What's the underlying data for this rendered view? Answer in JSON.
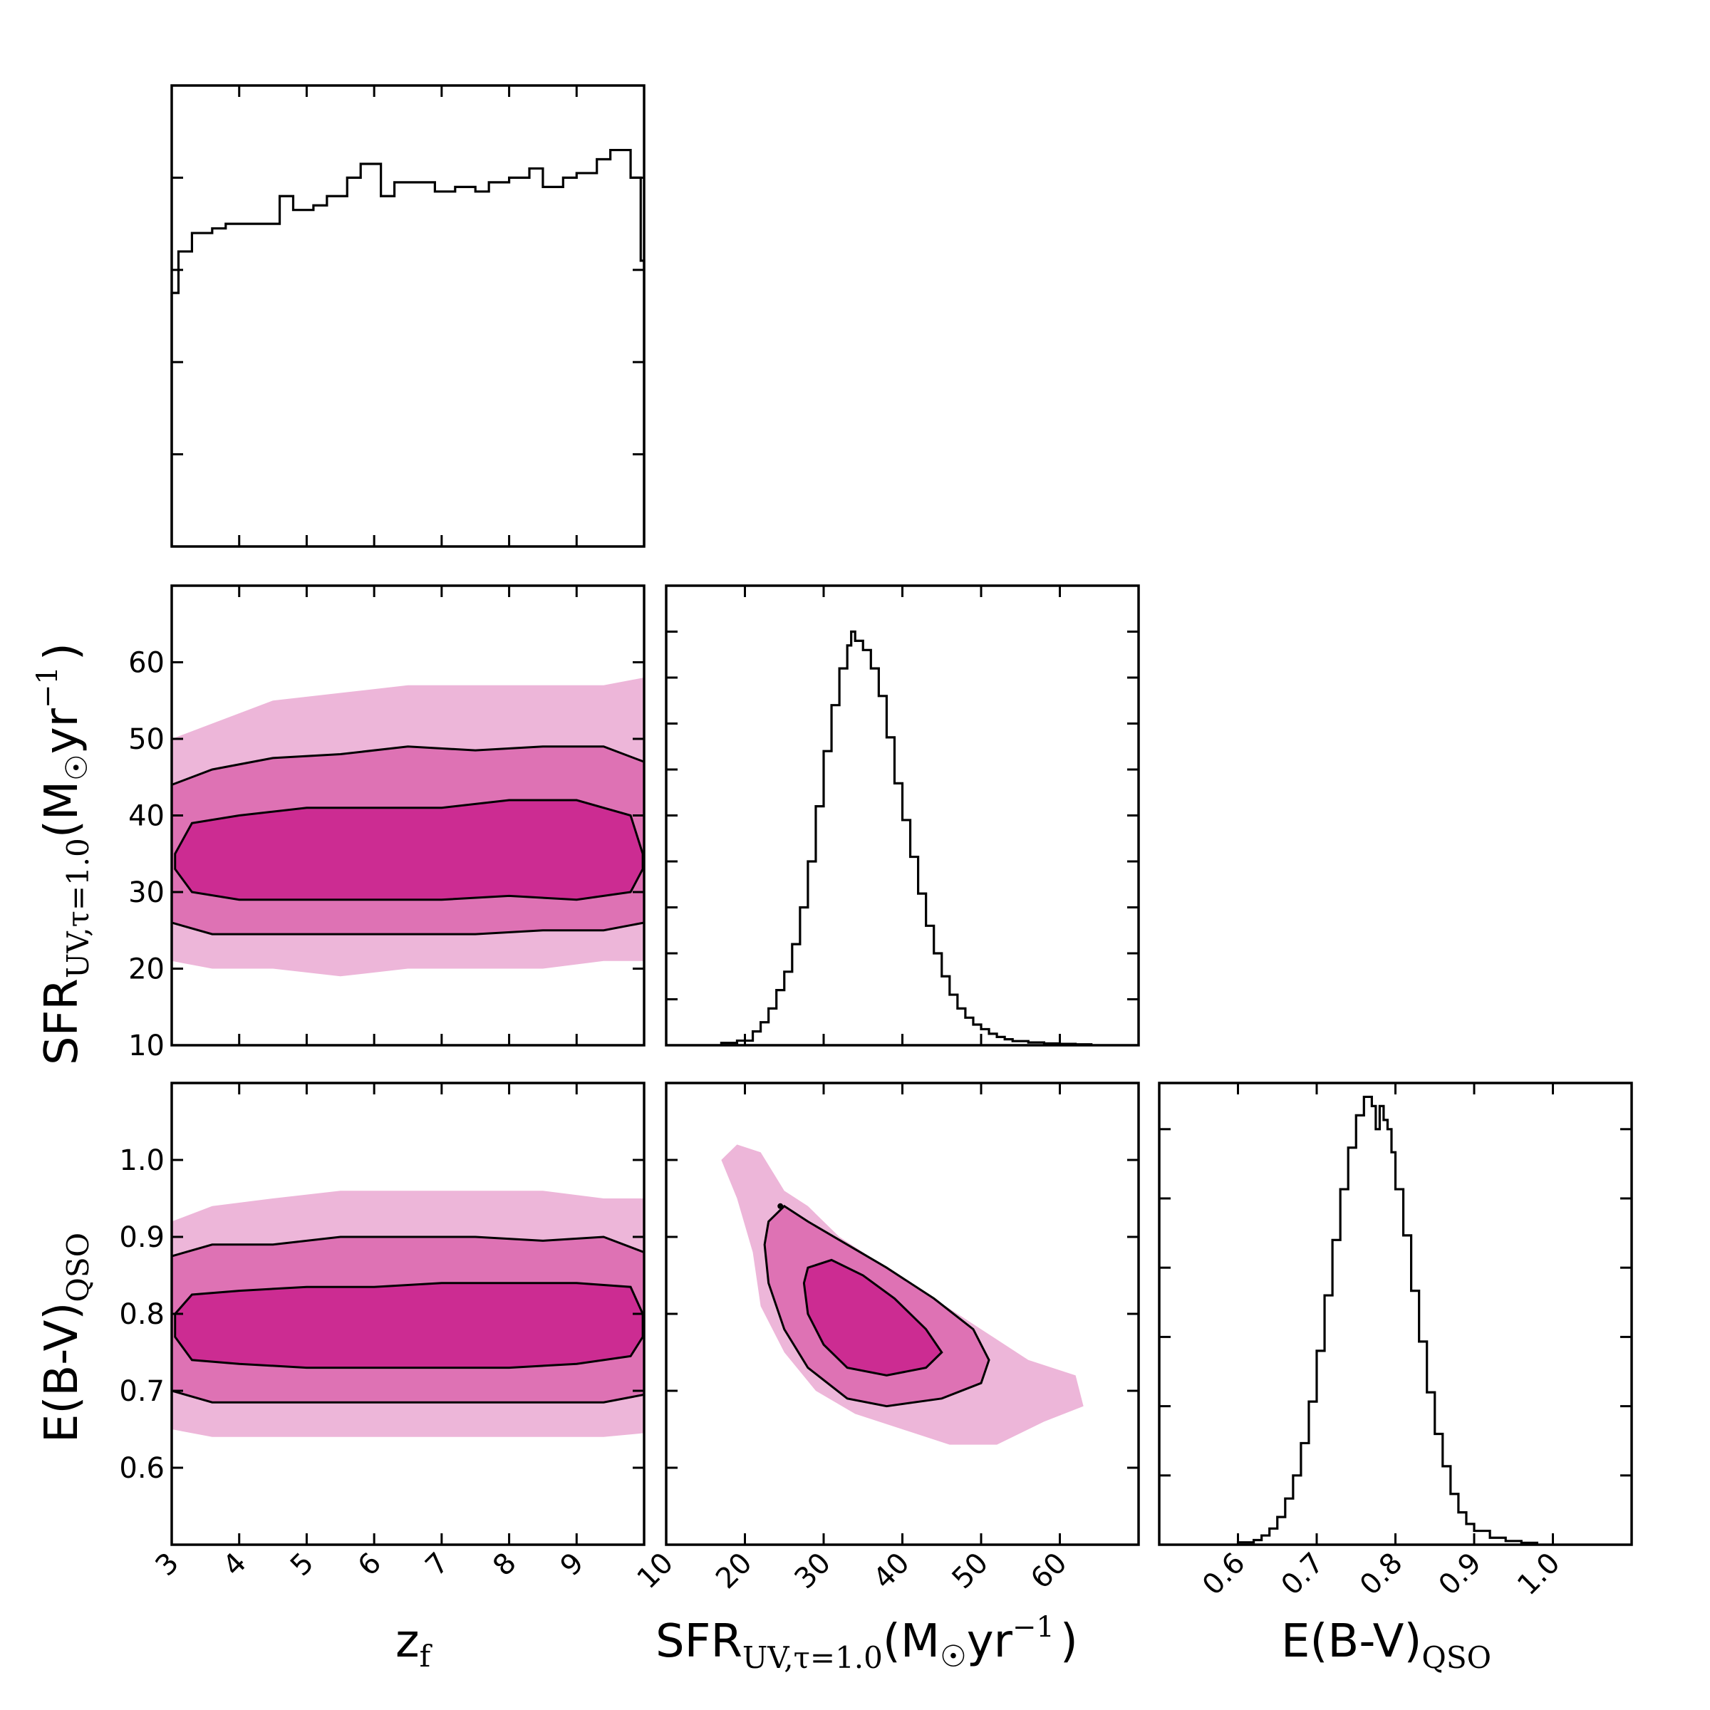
{
  "chart_data": [
    {
      "id": "hist-zf",
      "type": "histogram",
      "parameter": "z_f",
      "xlim": [
        3,
        10
      ],
      "ylim": [
        0,
        1.0
      ],
      "bin_edges": [
        3.0,
        3.1,
        3.3,
        3.6,
        3.8,
        4.0,
        4.3,
        4.6,
        4.8,
        5.1,
        5.3,
        5.6,
        5.8,
        6.1,
        6.3,
        6.6,
        6.9,
        7.2,
        7.5,
        7.7,
        8.0,
        8.3,
        8.5,
        8.8,
        9.0,
        9.3,
        9.5,
        9.8,
        9.95,
        10.0
      ],
      "counts": [
        0.55,
        0.64,
        0.68,
        0.69,
        0.7,
        0.7,
        0.7,
        0.76,
        0.73,
        0.74,
        0.76,
        0.8,
        0.83,
        0.76,
        0.79,
        0.79,
        0.77,
        0.78,
        0.77,
        0.79,
        0.8,
        0.82,
        0.78,
        0.8,
        0.81,
        0.84,
        0.86,
        0.8,
        0.62,
        0.0
      ],
      "ytick_positions": [
        0.2,
        0.4,
        0.6,
        0.8
      ]
    },
    {
      "id": "hist-sfr",
      "type": "histogram",
      "parameter": "SFR",
      "xlim": [
        10,
        70
      ],
      "ylim": [
        0,
        1.0
      ],
      "bin_edges": [
        17,
        19,
        21,
        22,
        23,
        24,
        25,
        26,
        27,
        28,
        29,
        30,
        31,
        32,
        33,
        33.5,
        34,
        35,
        36,
        37,
        38,
        39,
        40,
        41,
        42,
        43,
        44,
        45,
        46,
        47,
        48,
        49,
        50,
        51,
        52,
        53,
        54,
        56,
        58,
        60,
        62,
        64
      ],
      "counts": [
        0.005,
        0.01,
        0.03,
        0.05,
        0.08,
        0.12,
        0.16,
        0.22,
        0.3,
        0.4,
        0.52,
        0.64,
        0.74,
        0.82,
        0.87,
        0.9,
        0.88,
        0.86,
        0.82,
        0.76,
        0.67,
        0.57,
        0.49,
        0.41,
        0.33,
        0.26,
        0.2,
        0.15,
        0.11,
        0.08,
        0.06,
        0.045,
        0.035,
        0.025,
        0.018,
        0.013,
        0.009,
        0.006,
        0.004,
        0.003,
        0.002
      ],
      "ytick_positions": [
        0.1,
        0.2,
        0.3,
        0.4,
        0.5,
        0.6,
        0.7,
        0.8,
        0.9
      ]
    },
    {
      "id": "hist-ebv",
      "type": "histogram",
      "parameter": "E(B-V)_QSO",
      "xlim": [
        0.5,
        1.1
      ],
      "ylim": [
        0,
        1.0
      ],
      "bin_edges": [
        0.6,
        0.62,
        0.63,
        0.64,
        0.65,
        0.66,
        0.67,
        0.68,
        0.69,
        0.7,
        0.71,
        0.72,
        0.73,
        0.74,
        0.75,
        0.76,
        0.77,
        0.775,
        0.78,
        0.785,
        0.79,
        0.795,
        0.8,
        0.81,
        0.82,
        0.83,
        0.84,
        0.85,
        0.86,
        0.87,
        0.88,
        0.89,
        0.9,
        0.92,
        0.94,
        0.96,
        0.98
      ],
      "counts": [
        0.005,
        0.01,
        0.02,
        0.035,
        0.06,
        0.1,
        0.15,
        0.22,
        0.31,
        0.42,
        0.54,
        0.66,
        0.77,
        0.86,
        0.93,
        0.97,
        0.95,
        0.9,
        0.95,
        0.92,
        0.9,
        0.85,
        0.77,
        0.67,
        0.55,
        0.44,
        0.33,
        0.24,
        0.17,
        0.11,
        0.07,
        0.045,
        0.03,
        0.015,
        0.008,
        0.004
      ],
      "ytick_positions": [
        0.15,
        0.3,
        0.45,
        0.6,
        0.75,
        0.9
      ]
    },
    {
      "id": "contour-zf-sfr",
      "type": "contour",
      "x": "z_f",
      "y": "SFR",
      "xlim": [
        3,
        10
      ],
      "ylim": [
        10,
        70
      ],
      "yticks": [
        10,
        20,
        30,
        40,
        50,
        60
      ],
      "ytick_labels": [
        "10",
        "20",
        "30",
        "40",
        "50",
        "60"
      ],
      "fill_colors": [
        "#edb6d9",
        "#de72b4",
        "#cc2c92"
      ],
      "levels": [
        {
          "name": "outer",
          "upper": [
            [
              3,
              50
            ],
            [
              3.6,
              52
            ],
            [
              4.5,
              55
            ],
            [
              5.5,
              56
            ],
            [
              6.5,
              57
            ],
            [
              7.5,
              57
            ],
            [
              8.5,
              57
            ],
            [
              9.4,
              57
            ],
            [
              10,
              58
            ]
          ],
          "lower": [
            [
              3,
              21
            ],
            [
              3.6,
              20
            ],
            [
              4.5,
              20
            ],
            [
              5.5,
              19
            ],
            [
              6.5,
              20
            ],
            [
              7.5,
              20
            ],
            [
              8.5,
              20
            ],
            [
              9.4,
              21
            ],
            [
              10,
              21
            ]
          ]
        },
        {
          "name": "2sigma",
          "upper": [
            [
              3,
              44
            ],
            [
              3.6,
              46
            ],
            [
              4.5,
              47.5
            ],
            [
              5.5,
              48
            ],
            [
              6.5,
              49
            ],
            [
              7.5,
              48.5
            ],
            [
              8.5,
              49
            ],
            [
              9.4,
              49
            ],
            [
              10,
              47
            ]
          ],
          "lower": [
            [
              3,
              26
            ],
            [
              3.6,
              24.5
            ],
            [
              4.5,
              24.5
            ],
            [
              5.5,
              24.5
            ],
            [
              6.5,
              24.5
            ],
            [
              7.5,
              24.5
            ],
            [
              8.5,
              25
            ],
            [
              9.4,
              25
            ],
            [
              10,
              26
            ]
          ]
        },
        {
          "name": "1sigma",
          "upper": [
            [
              3.05,
              35
            ],
            [
              3.3,
              39
            ],
            [
              4,
              40
            ],
            [
              5,
              41
            ],
            [
              6,
              41
            ],
            [
              7,
              41
            ],
            [
              8,
              42
            ],
            [
              9,
              42
            ],
            [
              9.8,
              40
            ],
            [
              9.98,
              35
            ]
          ],
          "lower": [
            [
              3.05,
              33
            ],
            [
              3.3,
              30
            ],
            [
              4,
              29
            ],
            [
              5,
              29
            ],
            [
              6,
              29
            ],
            [
              7,
              29
            ],
            [
              8,
              29.5
            ],
            [
              9,
              29
            ],
            [
              9.8,
              30
            ],
            [
              9.98,
              33
            ]
          ]
        }
      ]
    },
    {
      "id": "contour-zf-ebv",
      "type": "contour",
      "x": "z_f",
      "y": "E(B-V)_QSO",
      "xlim": [
        3,
        10
      ],
      "ylim": [
        0.5,
        1.1
      ],
      "yticks": [
        0.6,
        0.7,
        0.8,
        0.9,
        1.0
      ],
      "ytick_labels": [
        "0.6",
        "0.7",
        "0.8",
        "0.9",
        "1.0"
      ],
      "fill_colors": [
        "#edb6d9",
        "#de72b4",
        "#cc2c92"
      ],
      "levels": [
        {
          "name": "outer",
          "upper": [
            [
              3,
              0.92
            ],
            [
              3.6,
              0.94
            ],
            [
              4.5,
              0.95
            ],
            [
              5.5,
              0.96
            ],
            [
              6.5,
              0.96
            ],
            [
              7.5,
              0.96
            ],
            [
              8.5,
              0.96
            ],
            [
              9.4,
              0.95
            ],
            [
              10,
              0.95
            ]
          ],
          "lower": [
            [
              3,
              0.65
            ],
            [
              3.6,
              0.64
            ],
            [
              4.5,
              0.64
            ],
            [
              5.5,
              0.64
            ],
            [
              6.5,
              0.64
            ],
            [
              7.5,
              0.64
            ],
            [
              8.5,
              0.64
            ],
            [
              9.4,
              0.64
            ],
            [
              10,
              0.645
            ]
          ]
        },
        {
          "name": "2sigma",
          "upper": [
            [
              3,
              0.875
            ],
            [
              3.6,
              0.89
            ],
            [
              4.5,
              0.89
            ],
            [
              5.5,
              0.9
            ],
            [
              6.5,
              0.9
            ],
            [
              7.5,
              0.9
            ],
            [
              8.5,
              0.895
            ],
            [
              9.4,
              0.9
            ],
            [
              10,
              0.88
            ]
          ],
          "lower": [
            [
              3,
              0.7
            ],
            [
              3.6,
              0.685
            ],
            [
              4.5,
              0.685
            ],
            [
              5.5,
              0.685
            ],
            [
              6.5,
              0.685
            ],
            [
              7.5,
              0.685
            ],
            [
              8.5,
              0.685
            ],
            [
              9.4,
              0.685
            ],
            [
              10,
              0.695
            ]
          ]
        },
        {
          "name": "1sigma",
          "upper": [
            [
              3.05,
              0.8
            ],
            [
              3.3,
              0.825
            ],
            [
              4,
              0.83
            ],
            [
              5,
              0.835
            ],
            [
              6,
              0.835
            ],
            [
              7,
              0.84
            ],
            [
              8,
              0.84
            ],
            [
              9,
              0.84
            ],
            [
              9.8,
              0.835
            ],
            [
              9.98,
              0.8
            ]
          ],
          "lower": [
            [
              3.05,
              0.77
            ],
            [
              3.3,
              0.74
            ],
            [
              4,
              0.735
            ],
            [
              5,
              0.73
            ],
            [
              6,
              0.73
            ],
            [
              7,
              0.73
            ],
            [
              8,
              0.73
            ],
            [
              9,
              0.735
            ],
            [
              9.8,
              0.745
            ],
            [
              9.98,
              0.77
            ]
          ]
        }
      ]
    },
    {
      "id": "contour-sfr-ebv",
      "type": "contour",
      "x": "SFR",
      "y": "E(B-V)_QSO",
      "xlim": [
        10,
        70
      ],
      "ylim": [
        0.5,
        1.1
      ],
      "fill_colors": [
        "#edb6d9",
        "#de72b4",
        "#cc2c92"
      ],
      "levels": [
        {
          "name": "outer",
          "polygon": [
            [
              17,
              1.0
            ],
            [
              19,
              1.02
            ],
            [
              22,
              1.01
            ],
            [
              25,
              0.96
            ],
            [
              28,
              0.94
            ],
            [
              32,
              0.9
            ],
            [
              38,
              0.86
            ],
            [
              44,
              0.82
            ],
            [
              50,
              0.78
            ],
            [
              56,
              0.74
            ],
            [
              62,
              0.72
            ],
            [
              63,
              0.68
            ],
            [
              58,
              0.66
            ],
            [
              52,
              0.63
            ],
            [
              46,
              0.63
            ],
            [
              40,
              0.65
            ],
            [
              34,
              0.67
            ],
            [
              29,
              0.7
            ],
            [
              25,
              0.75
            ],
            [
              22,
              0.81
            ],
            [
              21,
              0.88
            ],
            [
              19,
              0.95
            ]
          ]
        },
        {
          "name": "2sigma",
          "polygon": [
            [
              23,
              0.92
            ],
            [
              25,
              0.94
            ],
            [
              28,
              0.92
            ],
            [
              33,
              0.89
            ],
            [
              38,
              0.86
            ],
            [
              44,
              0.82
            ],
            [
              49,
              0.78
            ],
            [
              51,
              0.74
            ],
            [
              50,
              0.71
            ],
            [
              45,
              0.69
            ],
            [
              38,
              0.68
            ],
            [
              33,
              0.69
            ],
            [
              28,
              0.73
            ],
            [
              25,
              0.78
            ],
            [
              23,
              0.84
            ],
            [
              22.5,
              0.89
            ]
          ]
        },
        {
          "name": "1sigma",
          "polygon": [
            [
              28,
              0.86
            ],
            [
              31,
              0.87
            ],
            [
              35,
              0.85
            ],
            [
              39,
              0.82
            ],
            [
              43,
              0.78
            ],
            [
              45,
              0.75
            ],
            [
              43,
              0.73
            ],
            [
              38,
              0.72
            ],
            [
              33,
              0.73
            ],
            [
              30,
              0.76
            ],
            [
              28,
              0.8
            ],
            [
              27.5,
              0.84
            ]
          ]
        }
      ]
    }
  ],
  "axes": {
    "zf_ticks": [
      3,
      4,
      5,
      6,
      7,
      8,
      9
    ],
    "zf_tick_labels": [
      "3",
      "4",
      "5",
      "6",
      "7",
      "8",
      "9"
    ],
    "sfr_ticks": [
      10,
      20,
      30,
      40,
      50,
      60
    ],
    "sfr_tick_labels": [
      "10",
      "20",
      "30",
      "40",
      "50",
      "60"
    ],
    "ebv_ticks": [
      0.6,
      0.7,
      0.8,
      0.9,
      1.0
    ],
    "ebv_tick_labels": [
      "0.6",
      "0.7",
      "0.8",
      "0.9",
      "1.0"
    ]
  },
  "labels": {
    "zf_main": "z",
    "zf_sub": "f",
    "sfr_main": "SFR",
    "sfr_sub": "UV,τ=1.0",
    "sfr_units_open": "(M",
    "sfr_units_sun": "☉",
    "sfr_units_yr": "yr",
    "sfr_units_sup": "−1",
    "sfr_units_close": ")",
    "ebv_main": "E(B-V)",
    "ebv_sub": "QSO"
  }
}
